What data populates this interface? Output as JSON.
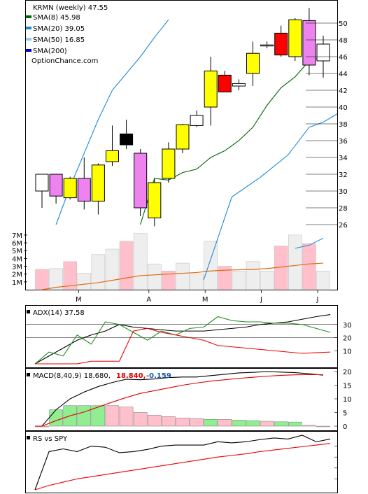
{
  "chart_data": [
    {
      "type": "candlestick",
      "panel": "price",
      "title": "KRMN (weekly) 47.55",
      "watermark": "OptionChance.com",
      "legend": [
        {
          "label": "SMA(8) 45.98",
          "color": "#006400"
        },
        {
          "label": "SMA(20) 39.05",
          "color": "#1e88d8"
        },
        {
          "label": "SMA(50) 16.85",
          "color": "#87cefa"
        },
        {
          "label": "SMA(200)",
          "color": "#0000cd"
        }
      ],
      "x_tick_labels": [
        {
          "label": "M",
          "index": 3
        },
        {
          "label": "A",
          "index": 8
        },
        {
          "label": "M",
          "index": 12
        },
        {
          "label": "J",
          "index": 16
        },
        {
          "label": "J",
          "index": 20
        }
      ],
      "ylim": [
        22,
        52
      ],
      "y_ticks": [
        26,
        28,
        30,
        32,
        34,
        36,
        38,
        40,
        42,
        44,
        46,
        48,
        50
      ],
      "candles": [
        {
          "o": 32.0,
          "h": 32.0,
          "l": 28.0,
          "c": 30.0,
          "color": "#ffffff"
        },
        {
          "o": 32.0,
          "h": 32.0,
          "l": 28.5,
          "c": 29.4,
          "color": "#ee82ee"
        },
        {
          "o": 31.5,
          "h": 31.7,
          "l": 29.0,
          "c": 29.2,
          "color": "#ffff00"
        },
        {
          "o": 31.5,
          "h": 34.0,
          "l": 27.8,
          "c": 28.8,
          "color": "#ee82ee"
        },
        {
          "o": 28.8,
          "h": 33.3,
          "l": 27.2,
          "c": 33.1,
          "color": "#ffff00"
        },
        {
          "o": 33.5,
          "h": 37.8,
          "l": 33.0,
          "c": 34.8,
          "color": "#ffff00"
        },
        {
          "o": 35.5,
          "h": 38.5,
          "l": 35.0,
          "c": 36.8,
          "color": "#000000"
        },
        {
          "o": 34.5,
          "h": 35.0,
          "l": 27.0,
          "c": 28.0,
          "color": "#ee82ee"
        },
        {
          "o": 31.0,
          "h": 31.5,
          "l": 25.8,
          "c": 26.8,
          "color": "#ffff00"
        },
        {
          "o": 31.5,
          "h": 35.8,
          "l": 31.0,
          "c": 35.0,
          "color": "#ffff00"
        },
        {
          "o": 35.0,
          "h": 38.0,
          "l": 34.5,
          "c": 37.9,
          "color": "#ffff00"
        },
        {
          "o": 37.8,
          "h": 39.6,
          "l": 37.6,
          "c": 39.0,
          "color": "#ffffff"
        },
        {
          "o": 40.0,
          "h": 46.0,
          "l": 37.8,
          "c": 44.3,
          "color": "#ffff00"
        },
        {
          "o": 43.8,
          "h": 44.3,
          "l": 42.0,
          "c": 41.8,
          "color": "#ff0000"
        },
        {
          "o": 42.5,
          "h": 43.3,
          "l": 42.0,
          "c": 42.8,
          "color": "#ffffff"
        },
        {
          "o": 44.0,
          "h": 47.8,
          "l": 42.5,
          "c": 46.4,
          "color": "#ffff00"
        },
        {
          "o": 47.4,
          "h": 47.8,
          "l": 47.0,
          "c": 47.4,
          "color": "#ffffff"
        },
        {
          "o": 48.8,
          "h": 49.7,
          "l": 46.0,
          "c": 46.2,
          "color": "#ff0000"
        },
        {
          "o": 46.0,
          "h": 50.6,
          "l": 45.5,
          "c": 50.4,
          "color": "#ffff00"
        },
        {
          "o": 50.3,
          "h": 51.8,
          "l": 43.8,
          "c": 45.0,
          "color": "#ee82ee"
        },
        {
          "o": 45.5,
          "h": 48.5,
          "l": 43.5,
          "c": 47.5,
          "color": "#ffffff"
        }
      ],
      "sma8": [
        null,
        null,
        null,
        null,
        null,
        null,
        null,
        26.0,
        31.5,
        31.3,
        32.2,
        32.6,
        34.0,
        34.8,
        36.0,
        37.6,
        40.2,
        42.3,
        43.6,
        45.5,
        46.0
      ],
      "sma20": [
        26.0,
        30.5,
        34.5,
        38.5,
        42.0,
        44.0,
        46.0,
        48.3,
        50.4
      ],
      "sma20_start_index": 0,
      "sma20_right": [
        {
          "i": 11.5,
          "v": 1.0
        },
        {
          "i": 13.5,
          "v": 29.3
        },
        {
          "i": 15.5,
          "v": 31.6
        },
        {
          "i": 17.5,
          "v": 34.3
        },
        {
          "i": 19.0,
          "v": 37.6
        },
        {
          "i": 20.0,
          "v": 38.2
        },
        {
          "i": 21.0,
          "v": 39.2
        }
      ],
      "volume_ylim": [
        0,
        7.8
      ],
      "volume_ticks": [
        1,
        2,
        3,
        4,
        5,
        6,
        7
      ],
      "volume_tick_labels": [
        "1M",
        "2M",
        "3M",
        "4M",
        "5M",
        "6M",
        "7M"
      ],
      "volume": [
        2.6,
        2.7,
        3.6,
        2.1,
        4.5,
        5.2,
        6.2,
        7.2,
        3.3,
        2.4,
        3.4,
        2.0,
        6.2,
        3.0,
        2.4,
        3.6,
        2.4,
        5.6,
        7.0,
        5.9,
        2.4
      ],
      "volume_colors": [
        "#ffc0cb",
        "#eeeeee",
        "#ffc0cb",
        "#eeeeee",
        "#eeeeee",
        "#eeeeee",
        "#ffc0cb",
        "#eeeeee",
        "#eeeeee",
        "#ffc0cb",
        "#eeeeee",
        "#eeeeee",
        "#eeeeee",
        "#ffc0cb",
        "#eeeeee",
        "#eeeeee",
        "#eeeeee",
        "#ffc0cb",
        "#eeeeee",
        "#ffc0cb",
        "#eeeeee"
      ],
      "volume_avg": [
        0.0,
        0.3,
        0.5,
        0.7,
        0.9,
        1.2,
        1.5,
        1.8,
        1.9,
        2.0,
        2.1,
        2.2,
        2.4,
        2.5,
        2.55,
        2.6,
        2.7,
        2.9,
        3.1,
        3.3,
        3.4
      ],
      "volume_sma20": [
        {
          "i": 18.0,
          "v": 5.3
        },
        {
          "i": 19.0,
          "v": 5.7
        },
        {
          "i": 20.0,
          "v": 6.6
        }
      ]
    },
    {
      "type": "line",
      "panel": "adx",
      "label": "ADX(14) 37.58",
      "ylim": [
        0,
        40
      ],
      "y_ticks": [
        10,
        20,
        30
      ],
      "hlines": [
        20,
        30
      ],
      "series": [
        {
          "color": "#000000",
          "values": [
            0,
            6,
            12,
            18,
            22,
            25,
            30,
            28,
            27,
            26,
            25,
            25,
            25,
            26,
            27,
            28,
            30,
            31,
            32,
            34,
            36,
            37.58
          ]
        },
        {
          "color": "#228b22",
          "values": [
            0,
            9,
            6,
            22,
            15,
            32,
            30,
            24,
            18,
            25,
            22,
            27,
            28,
            36,
            33,
            32,
            32,
            31,
            31,
            30,
            27,
            24
          ]
        },
        {
          "color": "#ee0000",
          "values": [
            0,
            0,
            0,
            0,
            2,
            2,
            2,
            25,
            27,
            24,
            22,
            20,
            18,
            14,
            13,
            12,
            11,
            10,
            9,
            8,
            8.5,
            9
          ]
        }
      ]
    },
    {
      "type": "bar+line",
      "panel": "macd",
      "label": "MACD(8,40,9) 18.680,",
      "label_signal": "18.840,",
      "label_hist": "-0.159",
      "ylim": [
        -1,
        21
      ],
      "y_ticks": [
        0,
        5,
        10,
        15,
        20
      ],
      "histogram": [
        0.0,
        6.0,
        7.5,
        7.5,
        7.5,
        7.5,
        7.0,
        5.0,
        4.0,
        3.5,
        3.0,
        2.8,
        2.5,
        2.5,
        2.2,
        2.0,
        1.8,
        1.6,
        1.5,
        0.3,
        -0.2
      ],
      "histogram_colors": [
        "#ffc0cb",
        "#90ee90",
        "#90ee90",
        "#90ee90",
        "#90ee90",
        "#ffc0cb",
        "#ffc0cb",
        "#ffc0cb",
        "#ffc0cb",
        "#ffc0cb",
        "#ffc0cb",
        "#ffc0cb",
        "#90ee90",
        "#ffc0cb",
        "#90ee90",
        "#90ee90",
        "#ffc0cb",
        "#90ee90",
        "#90ee90",
        "#ffc0cb",
        "#ffc0cb"
      ],
      "macd": [
        0,
        6.0,
        10.0,
        12.5,
        14.5,
        16.0,
        17.2,
        17.0,
        17.3,
        17.8,
        18.0,
        18.0,
        18.5,
        19.0,
        19.5,
        19.7,
        20.0,
        19.8,
        19.6,
        19.2,
        18.68
      ],
      "signal": [
        0,
        2.0,
        3.8,
        5.2,
        7.0,
        8.8,
        10.5,
        12.0,
        13.0,
        14.0,
        15.0,
        15.8,
        16.5,
        17.0,
        17.5,
        17.9,
        18.3,
        18.6,
        18.8,
        18.9,
        18.84
      ]
    },
    {
      "type": "line",
      "panel": "rs",
      "label": "RS vs SPY",
      "ylim": [
        0,
        100
      ],
      "series": [
        {
          "color": "#000000",
          "values": [
            0,
            70,
            75,
            70,
            80,
            78,
            68,
            70,
            74,
            80,
            82,
            82,
            82,
            88,
            86,
            88,
            92,
            95,
            93,
            100,
            88,
            93
          ]
        },
        {
          "color": "#ee0000",
          "values": [
            0,
            8,
            14,
            20,
            24,
            28,
            32,
            36,
            40,
            44,
            48,
            52,
            56,
            60,
            63,
            66,
            70,
            73,
            76,
            79,
            82,
            85
          ]
        }
      ]
    }
  ]
}
